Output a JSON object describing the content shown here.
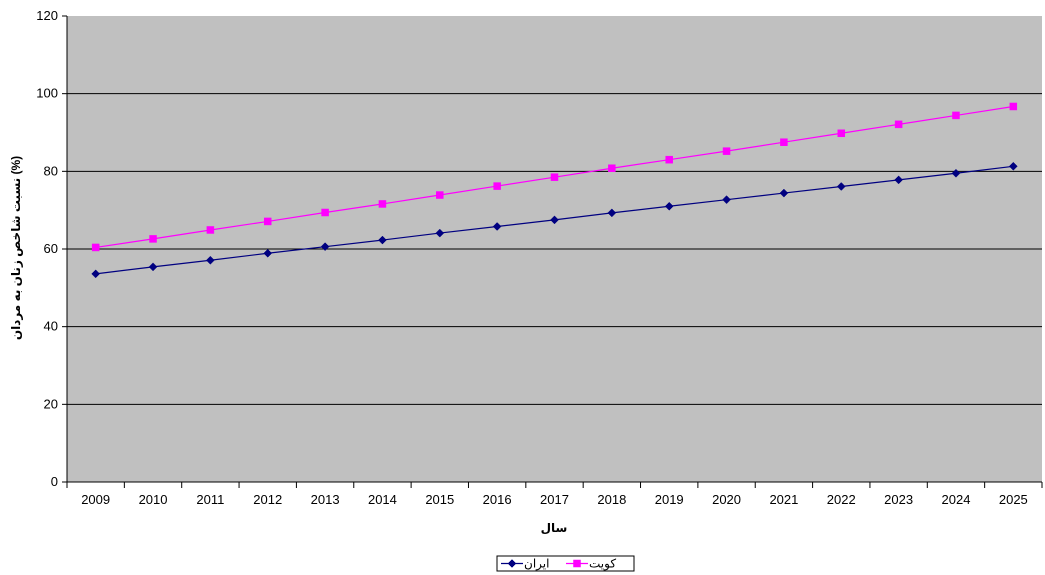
{
  "chart_data": {
    "type": "line",
    "title": "",
    "xlabel": "سال",
    "ylabel": "نسبت شاخص زنان به مردان (%)",
    "ylim": [
      0,
      120
    ],
    "yticks": [
      0,
      20,
      40,
      60,
      80,
      100,
      120
    ],
    "grid": true,
    "legend": "bottom-center",
    "categories": [
      "2009",
      "2010",
      "2011",
      "2012",
      "2013",
      "2014",
      "2015",
      "2016",
      "2017",
      "2018",
      "2019",
      "2020",
      "2021",
      "2022",
      "2023",
      "2024",
      "2025"
    ],
    "series": [
      {
        "name": "ایران",
        "color": "#000080",
        "marker": "diamond",
        "values": [
          53.6,
          55.4,
          57.1,
          58.9,
          60.6,
          62.3,
          64.1,
          65.8,
          67.5,
          69.3,
          71.0,
          72.7,
          74.4,
          76.1,
          77.8,
          79.5,
          81.3
        ]
      },
      {
        "name": "کویت",
        "color": "#FF00FF",
        "marker": "square",
        "values": [
          60.4,
          62.6,
          64.9,
          67.1,
          69.4,
          71.6,
          73.9,
          76.2,
          78.5,
          80.8,
          83.0,
          85.2,
          87.5,
          89.8,
          92.1,
          94.4,
          96.7
        ]
      }
    ],
    "plot_background": "#C0C0C0",
    "gridline_color": "#000000"
  }
}
